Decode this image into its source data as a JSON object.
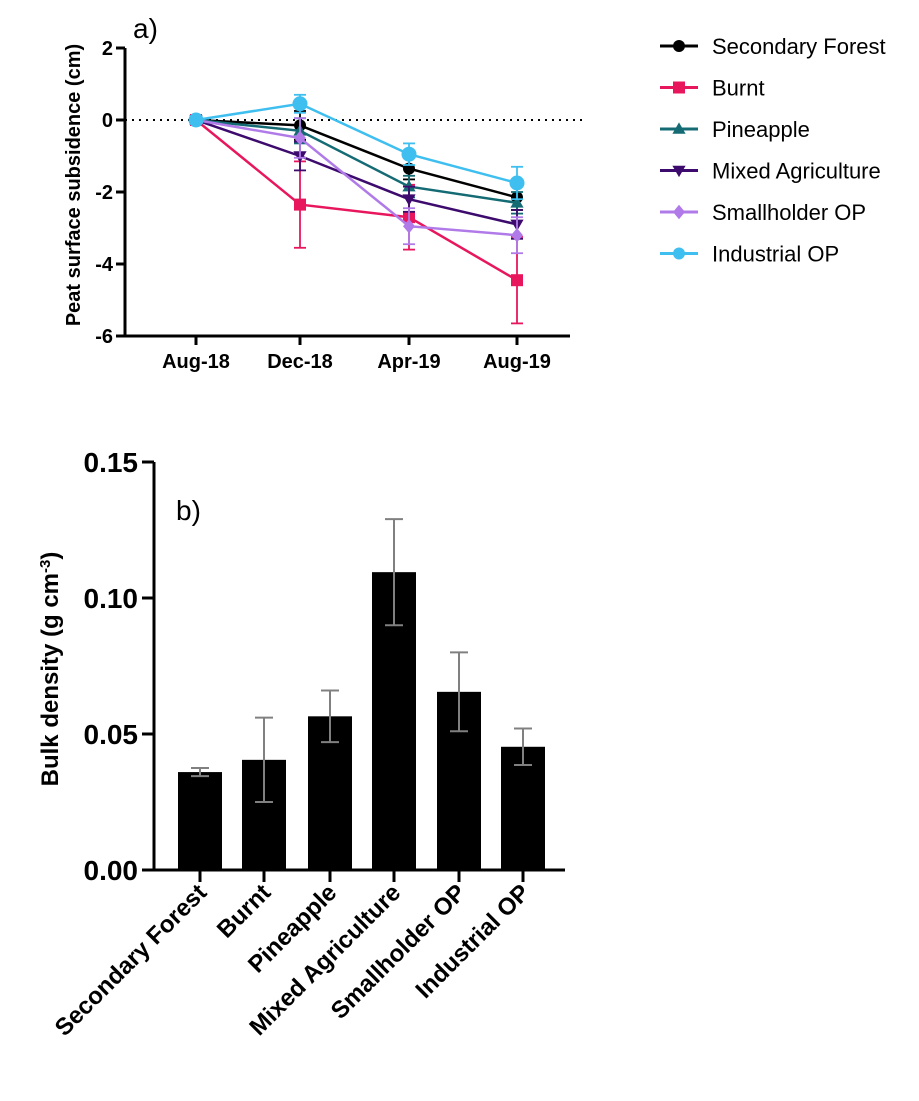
{
  "chart_data": [
    {
      "type": "line",
      "panel_label": "a)",
      "title": "",
      "xlabel": "",
      "ylabel": "Peat surface subsidence (cm)",
      "categories": [
        "Aug-18",
        "Dec-18",
        "Apr-19",
        "Aug-19"
      ],
      "ylim": [
        -6,
        2
      ],
      "yticks": [
        "2",
        "0",
        "-2",
        "-4",
        "-6"
      ],
      "reference_line_y": 0,
      "grid": false,
      "legend_position": "right",
      "series": [
        {
          "name": "Secondary Forest",
          "marker": "circle",
          "color": "#000000",
          "values": [
            0,
            -0.15,
            -1.35,
            -2.15
          ],
          "error": [
            0,
            0.4,
            0.3,
            0.35
          ]
        },
        {
          "name": "Burnt",
          "marker": "square",
          "color": "#e8175d",
          "values": [
            0,
            -2.35,
            -2.7,
            -4.45
          ],
          "error": [
            0,
            1.2,
            0.9,
            1.2
          ]
        },
        {
          "name": "Pineapple",
          "marker": "triangle-up",
          "color": "#146b74",
          "values": [
            0,
            -0.3,
            -1.85,
            -2.3
          ],
          "error": [
            0,
            0.35,
            0.3,
            0.3
          ]
        },
        {
          "name": "Mixed Agriculture",
          "marker": "triangle-down",
          "color": "#3d0a6e",
          "values": [
            0,
            -1.0,
            -2.2,
            -2.9
          ],
          "error": [
            0,
            0.4,
            0.35,
            0.4
          ]
        },
        {
          "name": "Smallholder OP",
          "marker": "diamond",
          "color": "#b07be8",
          "values": [
            0,
            -0.5,
            -2.95,
            -3.2
          ],
          "error": [
            0,
            0.55,
            0.5,
            0.5
          ]
        },
        {
          "name": "Industrial OP",
          "marker": "circle",
          "color": "#3fbff0",
          "values": [
            0,
            0.45,
            -0.95,
            -1.75
          ],
          "error": [
            0,
            0.25,
            0.3,
            0.45
          ]
        }
      ]
    },
    {
      "type": "bar",
      "panel_label": "b)",
      "title": "",
      "xlabel": "",
      "ylabel_main": "Bulk density (g cm",
      "ylabel_sup": "-3",
      "ylabel_close": ")",
      "categories": [
        "Secondary Forest",
        "Burnt",
        "Pineapple",
        "Mixed Agriculture",
        "Smallholder OP",
        "Industrial OP"
      ],
      "values": [
        0.036,
        0.0405,
        0.0565,
        0.1095,
        0.0655,
        0.0453
      ],
      "error": [
        0.0015,
        0.0155,
        0.0095,
        0.0195,
        0.0145,
        0.0067
      ],
      "ylim": [
        0,
        0.15
      ],
      "yticks": [
        "0.00",
        "0.05",
        "0.10",
        "0.15"
      ],
      "bar_color": "#000000",
      "error_color": "#808080",
      "grid": false
    }
  ]
}
